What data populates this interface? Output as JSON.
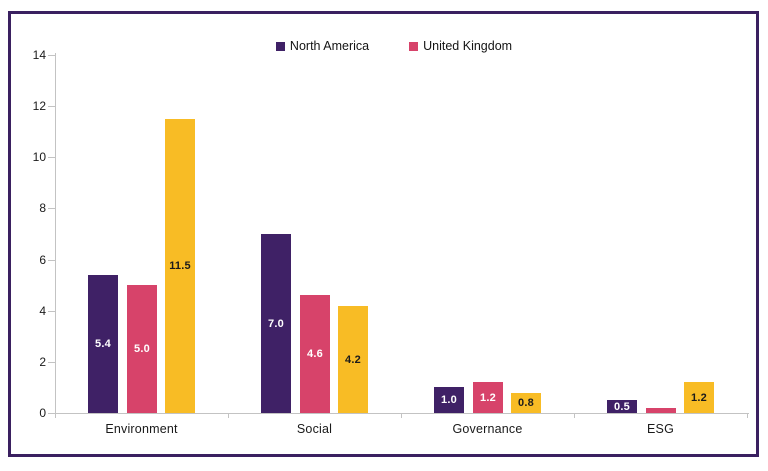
{
  "frame": {
    "border_color": "#3A2060"
  },
  "legend": {
    "items": [
      {
        "label": "North America",
        "color": "#3F2166"
      },
      {
        "label": "United Kingdom",
        "color": "#D7436A"
      }
    ]
  },
  "chart_data": {
    "type": "bar",
    "categories": [
      "Environment",
      "Social",
      "Governance",
      "ESG"
    ],
    "series": [
      {
        "name": "North America",
        "color": "#3F2166",
        "label_color": "#ffffff",
        "values": [
          5.4,
          7.0,
          1.0,
          0.5
        ],
        "labels": [
          "5.4",
          "7.0",
          "1.0",
          "0.5"
        ]
      },
      {
        "name": "United Kingdom",
        "color": "#D7436A",
        "label_color": "#ffffff",
        "values": [
          5.0,
          4.6,
          1.2,
          0.2
        ],
        "labels": [
          "5.0",
          "4.6",
          "1.2",
          ""
        ]
      },
      {
        "name": "",
        "color": "#F8BC25",
        "label_color": "#1b1b1b",
        "values": [
          11.5,
          4.2,
          0.8,
          1.2
        ],
        "labels": [
          "11.5",
          "4.2",
          "0.8",
          "1.2"
        ]
      }
    ],
    "title": "",
    "xlabel": "",
    "ylabel": "",
    "ylim": [
      0,
      14
    ],
    "yticks": [
      0,
      2,
      4,
      6,
      8,
      10,
      12,
      14
    ],
    "grid": false,
    "legend_position": "top-center",
    "bar_value_labels_inside": true
  }
}
